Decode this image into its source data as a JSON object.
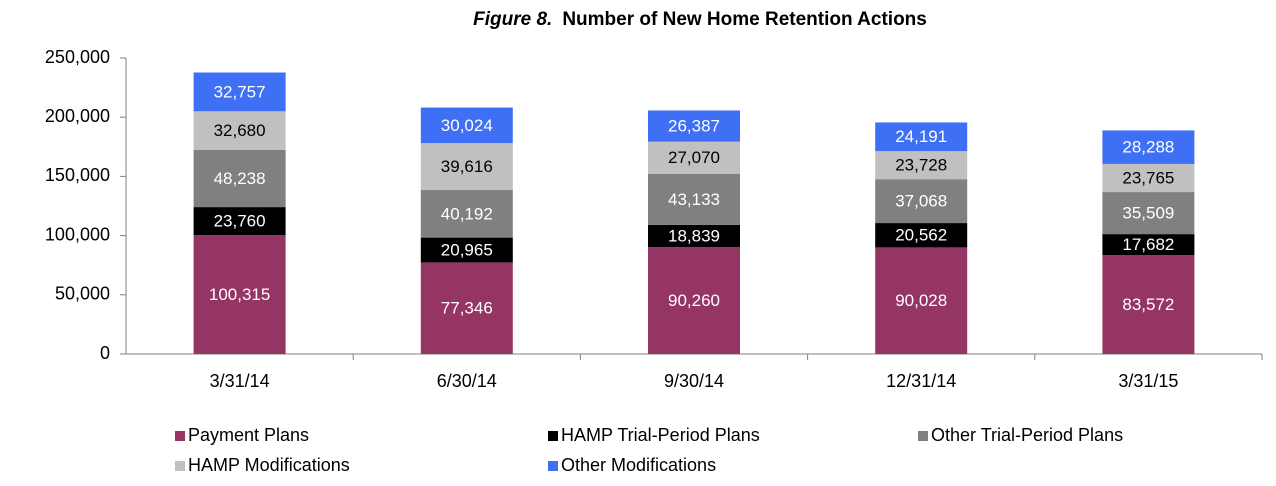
{
  "chart_data": {
    "type": "stacked_bar",
    "figure_label": "Figure 8.",
    "title": "Number of New Home Retention Actions",
    "categories": [
      "3/31/14",
      "6/30/14",
      "9/30/14",
      "12/31/14",
      "3/31/15"
    ],
    "series": [
      {
        "name": "Payment Plans",
        "color": "#953563",
        "label_color": "#ffffff",
        "values": [
          100315,
          77346,
          90260,
          90028,
          83572
        ],
        "value_labels": [
          "100,315",
          "77,346",
          "90,260",
          "90,028",
          "83,572"
        ]
      },
      {
        "name": "HAMP Trial-Period Plans",
        "color": "#000000",
        "label_color": "#ffffff",
        "values": [
          23760,
          20965,
          18839,
          20562,
          17682
        ],
        "value_labels": [
          "23,760",
          "20,965",
          "18,839",
          "20,562",
          "17,682"
        ]
      },
      {
        "name": "Other Trial-Period Plans",
        "color": "#808080",
        "label_color": "#ffffff",
        "values": [
          48238,
          40192,
          43133,
          37068,
          35509
        ],
        "value_labels": [
          "48,238",
          "40,192",
          "43,133",
          "37,068",
          "35,509"
        ]
      },
      {
        "name": "HAMP Modifications",
        "color": "#c0c0c0",
        "label_color": "#000000",
        "values": [
          32680,
          39616,
          27070,
          23728,
          23765
        ],
        "value_labels": [
          "32,680",
          "39,616",
          "27,070",
          "23,728",
          "23,765"
        ]
      },
      {
        "name": "Other Modifications",
        "color": "#3f6ff5",
        "label_color": "#ffffff",
        "values": [
          32757,
          30024,
          26387,
          24191,
          28288
        ],
        "value_labels": [
          "32,757",
          "30,024",
          "26,387",
          "24,191",
          "28,288"
        ]
      }
    ],
    "ylim": [
      0,
      250000
    ],
    "yticks": [
      0,
      {
        "value": 50000,
        "label": "50,000"
      },
      {
        "value": 100000,
        "label": "100,000"
      },
      {
        "value": 150000,
        "label": "150,000"
      },
      {
        "value": 200000,
        "label": "200,000"
      },
      {
        "value": 250000,
        "label": "250,000"
      }
    ],
    "grid": false,
    "legend": "bottom"
  }
}
